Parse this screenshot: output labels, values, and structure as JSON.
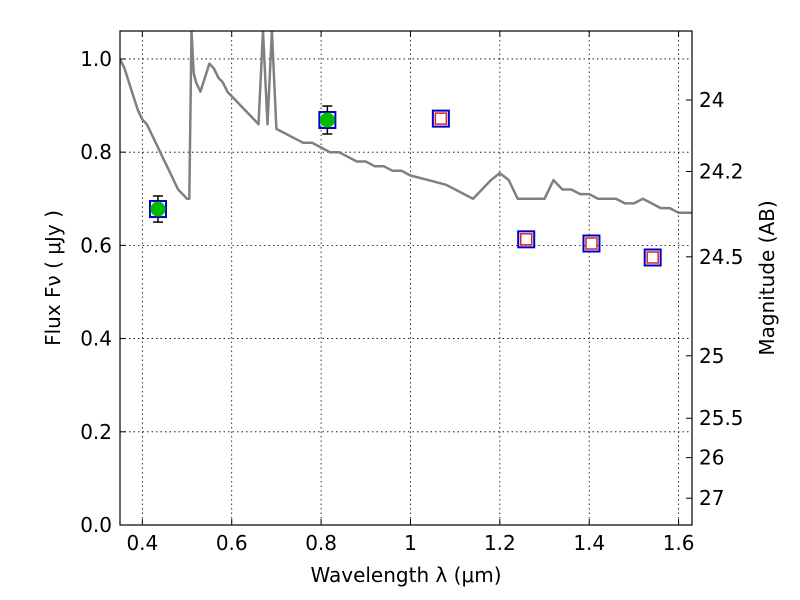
{
  "chart_data": {
    "type": "scatter",
    "xlabel": "Wavelength  λ (μm)",
    "ylabel": "Flux  Fν  ( μJy )",
    "y2label": "Magnitude (AB)",
    "xlim": [
      0.35,
      1.63
    ],
    "ylim": [
      0.0,
      1.06
    ],
    "grid": true,
    "x_ticks": [
      {
        "value": 0.4,
        "label": "0.4"
      },
      {
        "value": 0.6,
        "label": "0.6"
      },
      {
        "value": 0.8,
        "label": "0.8"
      },
      {
        "value": 1.0,
        "label": "1"
      },
      {
        "value": 1.2,
        "label": "1.2"
      },
      {
        "value": 1.4,
        "label": "1.4"
      },
      {
        "value": 1.6,
        "label": "1.6"
      }
    ],
    "y_ticks": [
      {
        "value": 0.0,
        "label": "0.0"
      },
      {
        "value": 0.2,
        "label": "0.2"
      },
      {
        "value": 0.4,
        "label": "0.4"
      },
      {
        "value": 0.6,
        "label": "0.6"
      },
      {
        "value": 0.8,
        "label": "0.8"
      },
      {
        "value": 1.0,
        "label": "1.0"
      }
    ],
    "y2_ticks": [
      {
        "value": 24,
        "label": "24"
      },
      {
        "value": 24.2,
        "label": "24.2"
      },
      {
        "value": 24.5,
        "label": "24.5"
      },
      {
        "value": 25,
        "label": "25"
      },
      {
        "value": 25.5,
        "label": "25.5"
      },
      {
        "value": 26,
        "label": "26"
      },
      {
        "value": 27,
        "label": "27"
      }
    ],
    "observed_points": {
      "x": [
        0.435,
        0.814
      ],
      "y": [
        0.678,
        0.869
      ],
      "yerr": [
        0.028,
        0.03
      ],
      "marker_color": "#00bb00",
      "box_color": "#0000cc"
    },
    "model_points": {
      "x": [
        1.068,
        1.259,
        1.405,
        1.542
      ],
      "y": [
        0.872,
        0.613,
        0.604,
        0.574
      ],
      "inner_color": "#dd2222",
      "box_color": "#0000cc"
    },
    "sed_model": {
      "color": "#808080",
      "x": [
        0.35,
        0.36,
        0.37,
        0.38,
        0.39,
        0.4,
        0.41,
        0.42,
        0.43,
        0.44,
        0.45,
        0.46,
        0.47,
        0.48,
        0.49,
        0.5,
        0.505,
        0.51,
        0.515,
        0.52,
        0.53,
        0.54,
        0.55,
        0.56,
        0.57,
        0.58,
        0.59,
        0.6,
        0.61,
        0.62,
        0.63,
        0.64,
        0.65,
        0.66,
        0.67,
        0.68,
        0.69,
        0.7,
        0.72,
        0.74,
        0.76,
        0.78,
        0.8,
        0.82,
        0.84,
        0.86,
        0.88,
        0.9,
        0.92,
        0.94,
        0.96,
        0.98,
        1.0,
        1.04,
        1.08,
        1.1,
        1.12,
        1.14,
        1.16,
        1.18,
        1.2,
        1.22,
        1.24,
        1.26,
        1.28,
        1.3,
        1.32,
        1.34,
        1.36,
        1.38,
        1.4,
        1.42,
        1.44,
        1.46,
        1.48,
        1.5,
        1.52,
        1.54,
        1.56,
        1.58,
        1.6,
        1.63
      ],
      "y": [
        1.0,
        0.98,
        0.95,
        0.92,
        0.89,
        0.87,
        0.86,
        0.84,
        0.82,
        0.8,
        0.78,
        0.76,
        0.74,
        0.72,
        0.71,
        0.7,
        0.7,
        1.06,
        0.97,
        0.95,
        0.93,
        0.96,
        0.99,
        0.98,
        0.96,
        0.95,
        0.93,
        0.92,
        0.91,
        0.9,
        0.89,
        0.88,
        0.87,
        0.86,
        1.06,
        0.86,
        1.06,
        0.85,
        0.84,
        0.83,
        0.82,
        0.82,
        0.81,
        0.8,
        0.8,
        0.79,
        0.78,
        0.78,
        0.77,
        0.77,
        0.76,
        0.76,
        0.75,
        0.74,
        0.73,
        0.72,
        0.71,
        0.7,
        0.72,
        0.74,
        0.755,
        0.74,
        0.7,
        0.7,
        0.7,
        0.7,
        0.74,
        0.72,
        0.72,
        0.71,
        0.71,
        0.7,
        0.7,
        0.7,
        0.69,
        0.69,
        0.7,
        0.69,
        0.68,
        0.68,
        0.67,
        0.67
      ]
    }
  }
}
